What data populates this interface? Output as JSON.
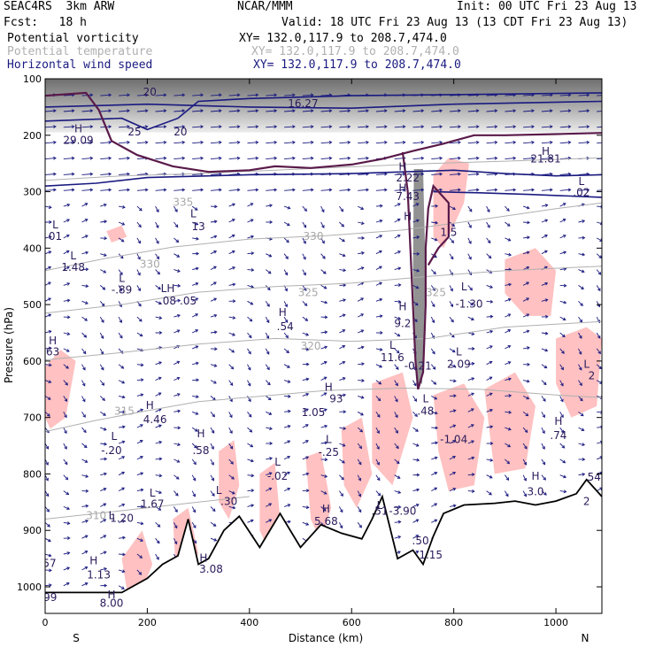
{
  "header": {
    "model": "SEAC4RS  3km ARW",
    "center": "NCAR/MMM",
    "init": "Init: 00 UTC Fri 23 Aug 13",
    "fcst": "Fcst:   18 h",
    "valid": "Valid: 18 UTC Fri 23 Aug 13 (13 CDT Fri 23 Aug 13)",
    "fields": [
      {
        "name": "Potential vorticity",
        "xy": "XY= 132.0,117.9 to 208.7,474.0",
        "color": "#5a1a4a"
      },
      {
        "name": "Potential temperature",
        "xy": "XY= 132.0,117.9 to 208.7,474.0",
        "color": "#b0b0b0"
      },
      {
        "name": "Horizontal wind speed",
        "xy": "XY= 132.0,117.9 to 208.7,474.0",
        "color": "#1a1a80"
      }
    ]
  },
  "chart_data": {
    "type": "cross-section",
    "xlabel": "Distance (km)",
    "ylabel": "Pressure (hPa)",
    "x_ticks": [
      0,
      200,
      400,
      600,
      800,
      1000
    ],
    "y_ticks": [
      100,
      200,
      300,
      400,
      500,
      600,
      700,
      800,
      900,
      1000
    ],
    "xlim": [
      0,
      1090
    ],
    "ylim": [
      100,
      1050
    ],
    "end_labels": {
      "left": "S",
      "right": "N"
    },
    "theta_contours": [
      {
        "label": "335",
        "points": [
          [
            0,
            280
          ],
          [
            150,
            272
          ],
          [
            300,
            268
          ],
          [
            450,
            262
          ],
          [
            600,
            256
          ],
          [
            750,
            250
          ],
          [
            900,
            246
          ],
          [
            1090,
            240
          ]
        ]
      },
      {
        "label": "330",
        "points": [
          [
            0,
            440
          ],
          [
            120,
            418
          ],
          [
            250,
            398
          ],
          [
            400,
            384
          ],
          [
            550,
            378
          ],
          [
            700,
            368
          ],
          [
            850,
            350
          ],
          [
            1000,
            330
          ],
          [
            1090,
            320
          ]
        ]
      },
      {
        "label": "325",
        "points": [
          [
            0,
            515
          ],
          [
            150,
            500
          ],
          [
            300,
            478
          ],
          [
            450,
            468
          ],
          [
            600,
            462
          ],
          [
            750,
            450
          ],
          [
            900,
            440
          ],
          [
            1090,
            432
          ]
        ]
      },
      {
        "label": "320",
        "points": [
          [
            0,
            598
          ],
          [
            150,
            585
          ],
          [
            300,
            570
          ],
          [
            450,
            560
          ],
          [
            600,
            565
          ],
          [
            750,
            560
          ],
          [
            900,
            540
          ],
          [
            1090,
            530
          ]
        ]
      },
      {
        "label": "315",
        "points": [
          [
            0,
            725
          ],
          [
            100,
            705
          ],
          [
            200,
            688
          ],
          [
            300,
            672
          ],
          [
            450,
            660
          ],
          [
            550,
            652
          ],
          [
            700,
            648
          ],
          [
            850,
            650
          ],
          [
            1000,
            660
          ],
          [
            1090,
            665
          ]
        ]
      },
      {
        "label": "310",
        "points": [
          [
            0,
            880
          ],
          [
            100,
            870
          ],
          [
            200,
            860
          ],
          [
            300,
            850
          ],
          [
            400,
            840
          ]
        ]
      }
    ],
    "theta_labels": [
      {
        "text": "335",
        "x": 270,
        "y": 325
      },
      {
        "text": "330",
        "x": 205,
        "y": 435
      },
      {
        "text": "330",
        "x": 525,
        "y": 385
      },
      {
        "text": "325",
        "x": 515,
        "y": 485
      },
      {
        "text": "325",
        "x": 765,
        "y": 485
      },
      {
        "text": "320",
        "x": 520,
        "y": 580
      },
      {
        "text": "315",
        "x": 155,
        "y": 695
      },
      {
        "text": "310",
        "x": 100,
        "y": 880
      }
    ],
    "hl_labels": [
      {
        "text": "H",
        "x": 65,
        "y": 195
      },
      {
        "text": "29.09",
        "x": 65,
        "y": 215
      },
      {
        "text": "20",
        "x": 205,
        "y": 130
      },
      {
        "text": "25",
        "x": 175,
        "y": 200
      },
      {
        "text": "20",
        "x": 265,
        "y": 200
      },
      {
        "text": "16.27",
        "x": 505,
        "y": 150
      },
      {
        "text": "L",
        "x": 20,
        "y": 365
      },
      {
        "text": "01",
        "x": 20,
        "y": 385
      },
      {
        "text": "L",
        "x": 290,
        "y": 345
      },
      {
        "text": "13",
        "x": 300,
        "y": 368
      },
      {
        "text": "L",
        "x": 55,
        "y": 420
      },
      {
        "text": "1.48",
        "x": 55,
        "y": 440
      },
      {
        "text": "L",
        "x": 150,
        "y": 460
      },
      {
        "text": "-.89",
        "x": 150,
        "y": 480
      },
      {
        "text": "LH",
        "x": 240,
        "y": 478
      },
      {
        "text": ".08",
        "x": 240,
        "y": 500
      },
      {
        "text": ".05",
        "x": 280,
        "y": 500
      },
      {
        "text": "H",
        "x": 465,
        "y": 520
      },
      {
        "text": ".54",
        "x": 470,
        "y": 545
      },
      {
        "text": "H",
        "x": 15,
        "y": 570
      },
      {
        "text": "63",
        "x": 15,
        "y": 590
      },
      {
        "text": "H",
        "x": 205,
        "y": 685
      },
      {
        "text": "4.46",
        "x": 215,
        "y": 710
      },
      {
        "text": "L",
        "x": 135,
        "y": 740
      },
      {
        "text": "-.20",
        "x": 130,
        "y": 765
      },
      {
        "text": "H",
        "x": 555,
        "y": 653
      },
      {
        "text": "93",
        "x": 570,
        "y": 673
      },
      {
        "text": "1.05",
        "x": 525,
        "y": 697
      },
      {
        "text": "H",
        "x": 305,
        "y": 735
      },
      {
        "text": ".58",
        "x": 305,
        "y": 765
      },
      {
        "text": "L",
        "x": 555,
        "y": 745
      },
      {
        "text": "-.25",
        "x": 555,
        "y": 768
      },
      {
        "text": "L",
        "x": 455,
        "y": 785
      },
      {
        "text": "-.02",
        "x": 455,
        "y": 810
      },
      {
        "text": "L",
        "x": 210,
        "y": 840
      },
      {
        "text": "1.67",
        "x": 210,
        "y": 860
      },
      {
        "text": "L",
        "x": 340,
        "y": 835
      },
      {
        "text": ".30",
        "x": 360,
        "y": 855
      },
      {
        "text": "L",
        "x": 130,
        "y": 880
      },
      {
        "text": "1.20",
        "x": 150,
        "y": 885
      },
      {
        "text": "H",
        "x": 550,
        "y": 868
      },
      {
        "text": "5.68",
        "x": 550,
        "y": 890
      },
      {
        "text": "L",
        "x": 655,
        "y": 862
      },
      {
        "text": ".51",
        "x": 655,
        "y": 872
      },
      {
        "text": "-3.90",
        "x": 700,
        "y": 872
      },
      {
        "text": "H",
        "x": 95,
        "y": 960
      },
      {
        "text": "1.13",
        "x": 105,
        "y": 985
      },
      {
        "text": "H",
        "x": 130,
        "y": 1020
      },
      {
        "text": "8.00",
        "x": 130,
        "y": 1035
      },
      {
        "text": "H",
        "x": 310,
        "y": 955
      },
      {
        "text": "3.08",
        "x": 325,
        "y": 975
      },
      {
        "text": "-57",
        "x": 5,
        "y": 965
      },
      {
        "text": "99",
        "x": 10,
        "y": 1025
      },
      {
        "text": ".50",
        "x": 735,
        "y": 925
      },
      {
        "text": "1.15",
        "x": 755,
        "y": 950
      },
      {
        "text": "H",
        "x": 700,
        "y": 262
      },
      {
        "text": "2.22",
        "x": 710,
        "y": 282
      },
      {
        "text": "H",
        "x": 700,
        "y": 300
      },
      {
        "text": "7.43",
        "x": 710,
        "y": 315
      },
      {
        "text": "H",
        "x": 710,
        "y": 350
      },
      {
        "text": "1.5",
        "x": 790,
        "y": 378
      },
      {
        "text": "H",
        "x": 700,
        "y": 510
      },
      {
        "text": "9.2",
        "x": 700,
        "y": 540
      },
      {
        "text": "L",
        "x": 680,
        "y": 578
      },
      {
        "text": "11.6",
        "x": 680,
        "y": 600
      },
      {
        "text": "-0.21",
        "x": 730,
        "y": 615
      },
      {
        "text": "L",
        "x": 810,
        "y": 590
      },
      {
        "text": "2.09",
        "x": 810,
        "y": 612
      },
      {
        "text": "L",
        "x": 820,
        "y": 475
      },
      {
        "text": "-1.30",
        "x": 830,
        "y": 505
      },
      {
        "text": "L",
        "x": 745,
        "y": 673
      },
      {
        "text": ".48",
        "x": 745,
        "y": 695
      },
      {
        "text": "-1.04",
        "x": 800,
        "y": 745
      },
      {
        "text": "H",
        "x": 1005,
        "y": 713
      },
      {
        "text": ".74",
        "x": 1005,
        "y": 738
      },
      {
        "text": "H",
        "x": 960,
        "y": 810
      },
      {
        "text": "3.0",
        "x": 960,
        "y": 838
      },
      {
        "text": "H",
        "x": 980,
        "y": 235
      },
      {
        "text": "21.81",
        "x": 980,
        "y": 248
      },
      {
        "text": "L",
        "x": 1050,
        "y": 288
      },
      {
        "text": ".02",
        "x": 1050,
        "y": 308
      },
      {
        "text": "L",
        "x": 1060,
        "y": 612
      },
      {
        "text": "2",
        "x": 1070,
        "y": 632
      },
      {
        "text": "54",
        "x": 1075,
        "y": 812
      },
      {
        "text": "2",
        "x": 1060,
        "y": 855
      }
    ],
    "pv_tropopause": [
      [
        0,
        130
      ],
      [
        80,
        125
      ],
      [
        105,
        155
      ],
      [
        130,
        210
      ],
      [
        180,
        235
      ],
      [
        250,
        255
      ],
      [
        320,
        265
      ],
      [
        400,
        262
      ],
      [
        450,
        255
      ],
      [
        520,
        258
      ],
      [
        600,
        252
      ],
      [
        660,
        242
      ],
      [
        720,
        228
      ],
      [
        780,
        215
      ],
      [
        840,
        200
      ],
      [
        900,
        200
      ],
      [
        1000,
        198
      ],
      [
        1090,
        196
      ]
    ],
    "pv_column": [
      [
        700,
        230
      ],
      [
        710,
        300
      ],
      [
        715,
        400
      ],
      [
        720,
        500
      ],
      [
        725,
        600
      ],
      [
        730,
        650
      ],
      [
        740,
        620
      ],
      [
        745,
        500
      ],
      [
        745,
        400
      ],
      [
        750,
        330
      ],
      [
        760,
        290
      ],
      [
        790,
        320
      ],
      [
        790,
        380
      ],
      [
        770,
        400
      ],
      [
        750,
        430
      ]
    ],
    "wind_contours": [
      {
        "label": "20",
        "points": [
          [
            0,
            150
          ],
          [
            200,
            145
          ],
          [
            400,
            150
          ],
          [
            600,
            152
          ],
          [
            800,
            145
          ],
          [
            1090,
            140
          ]
        ]
      },
      {
        "label": "",
        "points": [
          [
            0,
            175
          ],
          [
            150,
            170
          ],
          [
            200,
            190
          ],
          [
            260,
            170
          ],
          [
            300,
            140
          ],
          [
            400,
            135
          ],
          [
            600,
            130
          ],
          [
            800,
            128
          ],
          [
            1090,
            125
          ]
        ]
      },
      {
        "label": "",
        "points": [
          [
            0,
            290
          ],
          [
            100,
            285
          ],
          [
            200,
            275
          ],
          [
            400,
            270
          ],
          [
            600,
            268
          ],
          [
            800,
            262
          ],
          [
            900,
            268
          ],
          [
            1000,
            272
          ],
          [
            1090,
            270
          ]
        ]
      },
      {
        "label": "",
        "points": [
          [
            760,
            300
          ],
          [
            850,
            302
          ],
          [
            950,
            305
          ],
          [
            1090,
            310
          ]
        ]
      }
    ],
    "shading": "pink = positive PV anomaly; grey = high PV in stratosphere",
    "terrain": [
      [
        0,
        1010
      ],
      [
        150,
        1010
      ],
      [
        200,
        985
      ],
      [
        230,
        960
      ],
      [
        260,
        945
      ],
      [
        280,
        880
      ],
      [
        300,
        960
      ],
      [
        320,
        950
      ],
      [
        350,
        900
      ],
      [
        380,
        875
      ],
      [
        420,
        930
      ],
      [
        460,
        870
      ],
      [
        500,
        930
      ],
      [
        540,
        890
      ],
      [
        580,
        905
      ],
      [
        620,
        915
      ],
      [
        640,
        880
      ],
      [
        660,
        840
      ],
      [
        690,
        950
      ],
      [
        720,
        935
      ],
      [
        740,
        960
      ],
      [
        760,
        910
      ],
      [
        780,
        870
      ],
      [
        820,
        855
      ],
      [
        880,
        852
      ],
      [
        920,
        848
      ],
      [
        960,
        855
      ],
      [
        1000,
        848
      ],
      [
        1040,
        835
      ],
      [
        1060,
        810
      ],
      [
        1090,
        840
      ]
    ]
  }
}
